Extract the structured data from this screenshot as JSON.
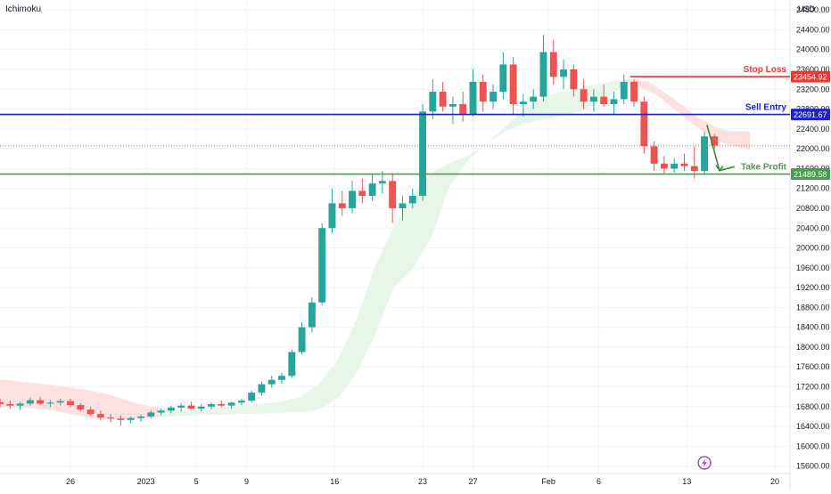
{
  "indicator": "Ichimoku",
  "currency": "USD",
  "colors": {
    "up": "#26a69a",
    "down": "#ef5350",
    "cloud_bull": "#e8f5e9",
    "cloud_bear": "#fde0e0",
    "stop_loss": "#e53935",
    "sell_entry": "#1e22c8",
    "take_profit": "#43a047",
    "arrow": "#3d8a3a",
    "grid": "#f0f3fa",
    "axis_text": "#131722"
  },
  "icons": {
    "bottom_badge": "lightning-icon"
  },
  "chart_data": {
    "type": "candlestick",
    "title": "",
    "indicator": "Ichimoku",
    "currency": "USD",
    "y_range": [
      15450,
      25000
    ],
    "y_ticks": [
      "24800.00",
      "24400.00",
      "24000.00",
      "23600.00",
      "23200.00",
      "22800.00",
      "22400.00",
      "22000.00",
      "21600.00",
      "21200.00",
      "20800.00",
      "20400.00",
      "20000.00",
      "19600.00",
      "19200.00",
      "18800.00",
      "18400.00",
      "18000.00",
      "17600.00",
      "17200.00",
      "16800.00",
      "16400.00",
      "16000.00",
      "15600.00"
    ],
    "x_ticks": [
      {
        "label": "26",
        "day": 0
      },
      {
        "label": "2023",
        "day": 6
      },
      {
        "label": "5",
        "day": 10
      },
      {
        "label": "9",
        "day": 14
      },
      {
        "label": "16",
        "day": 21
      },
      {
        "label": "23",
        "day": 28
      },
      {
        "label": "27",
        "day": 32
      },
      {
        "label": "Feb",
        "day": 38
      },
      {
        "label": "6",
        "day": 42
      },
      {
        "label": "13",
        "day": 49
      },
      {
        "label": "20",
        "day": 56
      }
    ],
    "x_domain": [
      -5.6,
      57.2
    ],
    "price_close_line": 22060,
    "levels": [
      {
        "name": "Stop Loss",
        "value": 23454.92,
        "value_label": "23454.92",
        "color_key": "stop_loss",
        "from_day": 44.5
      },
      {
        "name": "Sell Entry",
        "value": 22691.67,
        "value_label": "22691.67",
        "color_key": "sell_entry",
        "from_day": -5.6
      },
      {
        "name": "Take Profit",
        "value": 21489.58,
        "value_label": "21489.58",
        "color_key": "take_profit",
        "from_day": -5.6
      }
    ],
    "projection_arrow": {
      "from": [
        50.6,
        22480
      ],
      "via": [
        51.6,
        21560
      ],
      "to": [
        52.8,
        21640
      ]
    },
    "cloud_upper": [
      [
        -5.6,
        17350
      ],
      [
        -2,
        17250
      ],
      [
        1,
        17150
      ],
      [
        3,
        17050
      ],
      [
        5,
        16880
      ],
      [
        7,
        16760
      ],
      [
        9,
        16700
      ],
      [
        12,
        16780
      ],
      [
        15,
        16850
      ],
      [
        18,
        16950
      ],
      [
        20,
        17300
      ],
      [
        22,
        18000
      ],
      [
        24,
        19500
      ],
      [
        26,
        20600
      ],
      [
        28,
        21400
      ],
      [
        30,
        21700
      ],
      [
        32,
        21900
      ],
      [
        34,
        22300
      ],
      [
        36,
        22800
      ],
      [
        38,
        23100
      ],
      [
        40,
        23200
      ],
      [
        42,
        23300
      ],
      [
        44,
        23400
      ],
      [
        46,
        23350
      ],
      [
        48,
        23000
      ],
      [
        50,
        22600
      ],
      [
        52,
        22350
      ],
      [
        54,
        22350
      ]
    ],
    "cloud_lower": [
      [
        -5.6,
        16800
      ],
      [
        -2,
        16750
      ],
      [
        1,
        16600
      ],
      [
        3,
        16550
      ],
      [
        5,
        16550
      ],
      [
        7,
        16580
      ],
      [
        9,
        16620
      ],
      [
        12,
        16640
      ],
      [
        15,
        16660
      ],
      [
        18,
        16680
      ],
      [
        20,
        16750
      ],
      [
        22,
        17100
      ],
      [
        24,
        18100
      ],
      [
        26,
        19400
      ],
      [
        28,
        19700
      ],
      [
        30,
        21200
      ],
      [
        32,
        21900
      ],
      [
        34,
        22300
      ],
      [
        36,
        22500
      ],
      [
        38,
        22600
      ],
      [
        40,
        22700
      ],
      [
        42,
        22900
      ],
      [
        44,
        23300
      ],
      [
        46,
        23200
      ],
      [
        48,
        22800
      ],
      [
        50,
        22400
      ],
      [
        52,
        22100
      ],
      [
        54,
        21980
      ]
    ],
    "cloud_bear_ranges": [
      [
        -5.6,
        7
      ],
      [
        44,
        54
      ]
    ],
    "candles": [
      {
        "d": -5.6,
        "o": 16890,
        "h": 16960,
        "l": 16780,
        "c": 16850
      },
      {
        "d": -4.8,
        "o": 16850,
        "h": 16920,
        "l": 16760,
        "c": 16820
      },
      {
        "d": -4.0,
        "o": 16820,
        "h": 16900,
        "l": 16730,
        "c": 16860
      },
      {
        "d": -3.2,
        "o": 16860,
        "h": 16980,
        "l": 16820,
        "c": 16930
      },
      {
        "d": -2.4,
        "o": 16930,
        "h": 16990,
        "l": 16830,
        "c": 16860
      },
      {
        "d": -1.6,
        "o": 16860,
        "h": 16930,
        "l": 16790,
        "c": 16880
      },
      {
        "d": -0.8,
        "o": 16880,
        "h": 16960,
        "l": 16820,
        "c": 16910
      },
      {
        "d": 0.0,
        "o": 16910,
        "h": 16960,
        "l": 16790,
        "c": 16830
      },
      {
        "d": 0.8,
        "o": 16830,
        "h": 16870,
        "l": 16700,
        "c": 16740
      },
      {
        "d": 1.6,
        "o": 16740,
        "h": 16800,
        "l": 16620,
        "c": 16650
      },
      {
        "d": 2.4,
        "o": 16650,
        "h": 16720,
        "l": 16520,
        "c": 16580
      },
      {
        "d": 3.2,
        "o": 16580,
        "h": 16650,
        "l": 16480,
        "c": 16560
      },
      {
        "d": 4.0,
        "o": 16560,
        "h": 16620,
        "l": 16420,
        "c": 16530
      },
      {
        "d": 4.8,
        "o": 16530,
        "h": 16600,
        "l": 16460,
        "c": 16570
      },
      {
        "d": 5.6,
        "o": 16570,
        "h": 16640,
        "l": 16500,
        "c": 16600
      },
      {
        "d": 6.4,
        "o": 16600,
        "h": 16720,
        "l": 16560,
        "c": 16680
      },
      {
        "d": 7.2,
        "o": 16680,
        "h": 16760,
        "l": 16620,
        "c": 16720
      },
      {
        "d": 8.0,
        "o": 16720,
        "h": 16820,
        "l": 16660,
        "c": 16780
      },
      {
        "d": 8.8,
        "o": 16780,
        "h": 16870,
        "l": 16700,
        "c": 16820
      },
      {
        "d": 9.6,
        "o": 16820,
        "h": 16900,
        "l": 16740,
        "c": 16760
      },
      {
        "d": 10.4,
        "o": 16760,
        "h": 16850,
        "l": 16700,
        "c": 16800
      },
      {
        "d": 11.2,
        "o": 16800,
        "h": 16880,
        "l": 16740,
        "c": 16850
      },
      {
        "d": 12.0,
        "o": 16850,
        "h": 16920,
        "l": 16790,
        "c": 16820
      },
      {
        "d": 12.8,
        "o": 16820,
        "h": 16900,
        "l": 16760,
        "c": 16880
      },
      {
        "d": 13.6,
        "o": 16880,
        "h": 16960,
        "l": 16830,
        "c": 16920
      },
      {
        "d": 14.4,
        "o": 16920,
        "h": 17120,
        "l": 16880,
        "c": 17080
      },
      {
        "d": 15.2,
        "o": 17080,
        "h": 17300,
        "l": 17020,
        "c": 17250
      },
      {
        "d": 16.0,
        "o": 17250,
        "h": 17420,
        "l": 17180,
        "c": 17340
      },
      {
        "d": 16.8,
        "o": 17340,
        "h": 17480,
        "l": 17260,
        "c": 17420
      },
      {
        "d": 17.6,
        "o": 17420,
        "h": 17950,
        "l": 17380,
        "c": 17900
      },
      {
        "d": 18.4,
        "o": 17900,
        "h": 18500,
        "l": 17850,
        "c": 18400
      },
      {
        "d": 19.2,
        "o": 18400,
        "h": 19000,
        "l": 18300,
        "c": 18900
      },
      {
        "d": 20.0,
        "o": 18900,
        "h": 20500,
        "l": 18850,
        "c": 20400
      },
      {
        "d": 20.8,
        "o": 20400,
        "h": 21200,
        "l": 20300,
        "c": 20900
      },
      {
        "d": 21.6,
        "o": 20900,
        "h": 21150,
        "l": 20650,
        "c": 20800
      },
      {
        "d": 22.4,
        "o": 20800,
        "h": 21350,
        "l": 20700,
        "c": 21150
      },
      {
        "d": 23.2,
        "o": 21150,
        "h": 21400,
        "l": 20900,
        "c": 21050
      },
      {
        "d": 24.0,
        "o": 21050,
        "h": 21500,
        "l": 20950,
        "c": 21300
      },
      {
        "d": 24.8,
        "o": 21300,
        "h": 21550,
        "l": 21100,
        "c": 21350
      },
      {
        "d": 25.6,
        "o": 21350,
        "h": 21500,
        "l": 20500,
        "c": 20800
      },
      {
        "d": 26.4,
        "o": 20800,
        "h": 21050,
        "l": 20550,
        "c": 20900
      },
      {
        "d": 27.2,
        "o": 20900,
        "h": 21200,
        "l": 20800,
        "c": 21050
      },
      {
        "d": 28.0,
        "o": 21050,
        "h": 22900,
        "l": 20950,
        "c": 22750
      },
      {
        "d": 28.8,
        "o": 22750,
        "h": 23400,
        "l": 22600,
        "c": 23150
      },
      {
        "d": 29.6,
        "o": 23150,
        "h": 23350,
        "l": 22750,
        "c": 22850
      },
      {
        "d": 30.4,
        "o": 22850,
        "h": 23050,
        "l": 22500,
        "c": 22900
      },
      {
        "d": 31.2,
        "o": 22900,
        "h": 23150,
        "l": 22550,
        "c": 22700
      },
      {
        "d": 32.0,
        "o": 22700,
        "h": 23600,
        "l": 22650,
        "c": 23350
      },
      {
        "d": 32.8,
        "o": 23350,
        "h": 23500,
        "l": 22750,
        "c": 22950
      },
      {
        "d": 33.6,
        "o": 22950,
        "h": 23300,
        "l": 22800,
        "c": 23150
      },
      {
        "d": 34.4,
        "o": 23150,
        "h": 23950,
        "l": 23000,
        "c": 23700
      },
      {
        "d": 35.2,
        "o": 23700,
        "h": 23850,
        "l": 22700,
        "c": 22900
      },
      {
        "d": 36.0,
        "o": 22900,
        "h": 23100,
        "l": 22650,
        "c": 22950
      },
      {
        "d": 36.8,
        "o": 22950,
        "h": 23200,
        "l": 22800,
        "c": 23050
      },
      {
        "d": 37.6,
        "o": 23050,
        "h": 24300,
        "l": 22950,
        "c": 23950
      },
      {
        "d": 38.4,
        "o": 23950,
        "h": 24200,
        "l": 23300,
        "c": 23450
      },
      {
        "d": 39.2,
        "o": 23450,
        "h": 23800,
        "l": 23200,
        "c": 23600
      },
      {
        "d": 40.0,
        "o": 23600,
        "h": 23700,
        "l": 23050,
        "c": 23200
      },
      {
        "d": 40.8,
        "o": 23200,
        "h": 23400,
        "l": 22800,
        "c": 22950
      },
      {
        "d": 41.6,
        "o": 22950,
        "h": 23200,
        "l": 22750,
        "c": 23050
      },
      {
        "d": 42.4,
        "o": 23050,
        "h": 23300,
        "l": 22850,
        "c": 22900
      },
      {
        "d": 43.2,
        "o": 22900,
        "h": 23150,
        "l": 22700,
        "c": 23000
      },
      {
        "d": 44.0,
        "o": 23000,
        "h": 23500,
        "l": 22900,
        "c": 23350
      },
      {
        "d": 44.8,
        "o": 23350,
        "h": 23400,
        "l": 22850,
        "c": 22950
      },
      {
        "d": 45.6,
        "o": 22950,
        "h": 23050,
        "l": 21900,
        "c": 22050
      },
      {
        "d": 46.4,
        "o": 22050,
        "h": 22150,
        "l": 21550,
        "c": 21700
      },
      {
        "d": 47.2,
        "o": 21700,
        "h": 21850,
        "l": 21480,
        "c": 21600
      },
      {
        "d": 48.0,
        "o": 21600,
        "h": 21800,
        "l": 21520,
        "c": 21700
      },
      {
        "d": 48.8,
        "o": 21700,
        "h": 21900,
        "l": 21550,
        "c": 21650
      },
      {
        "d": 49.6,
        "o": 21650,
        "h": 22050,
        "l": 21400,
        "c": 21550
      },
      {
        "d": 50.4,
        "o": 21550,
        "h": 22350,
        "l": 21500,
        "c": 22250
      },
      {
        "d": 51.2,
        "o": 22250,
        "h": 22300,
        "l": 22000,
        "c": 22060
      }
    ]
  }
}
